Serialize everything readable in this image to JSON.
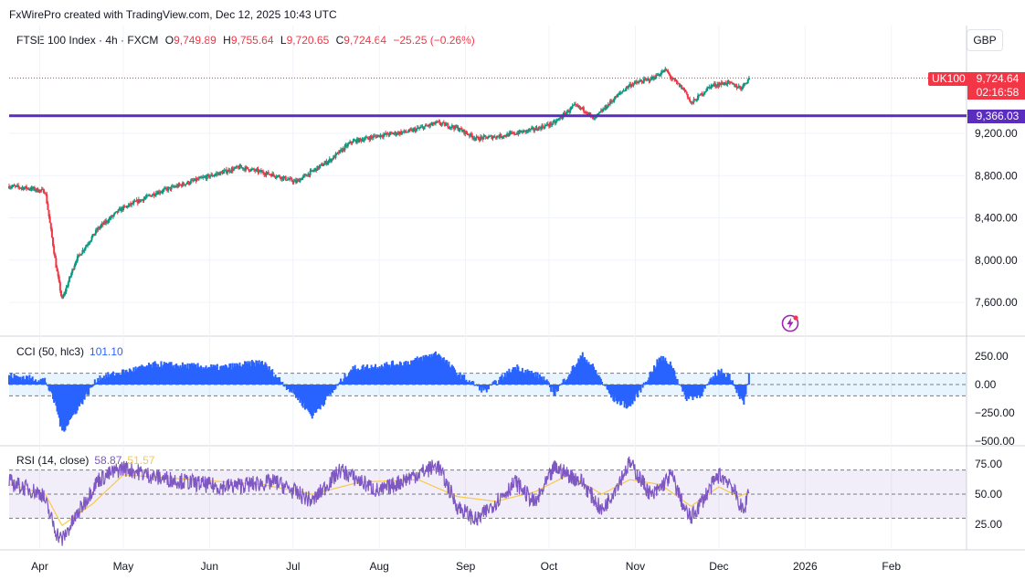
{
  "header": {
    "attribution": "FxWirePro created with TradingView.com, Dec 12, 2025 10:43 UTC"
  },
  "symbol": {
    "name": "FTSE 100 Index · 4h · FXCM",
    "open_label": "O",
    "open": "9,749.89",
    "high_label": "H",
    "high": "9,755.64",
    "low_label": "L",
    "low": "9,720.65",
    "close_label": "C",
    "close": "9,724.64",
    "change": "−25.25 (−0.26%)"
  },
  "currency": "GBP",
  "badges": {
    "ticker": "UK100",
    "last_price": "9,724.64",
    "countdown": "02:16:58",
    "horizontal_line": "9,366.03"
  },
  "cci": {
    "label": "CCI (50, hlc3)",
    "value": "101.10"
  },
  "rsi": {
    "label": "RSI (14, close)",
    "value": "58.87",
    "ma_value": "51.57"
  },
  "colors": {
    "up": "#089981",
    "down": "#f23645",
    "line": "#5b2dbf",
    "cci": "#2962ff",
    "rsi": "#7e57c2",
    "rsi_ma": "#f7c948"
  },
  "icons": {
    "flash": "flash-icon"
  },
  "chart_data": [
    {
      "type": "candlestick",
      "title": "FTSE 100 Index · 4h · FXCM",
      "y_ticks": [
        "7,600.00",
        "8,000.00",
        "8,400.00",
        "8,800.00",
        "9,200.00"
      ],
      "y_tick_values": [
        7600,
        8000,
        8400,
        8800,
        9200
      ],
      "x_ticks": [
        "Apr",
        "May",
        "Jun",
        "Jul",
        "Aug",
        "Sep",
        "Oct",
        "Nov",
        "Dec",
        "2026",
        "Feb"
      ],
      "horizontal_line": 9366.03,
      "last_price": 9724.64,
      "path_dates": [
        "Mar 21",
        "Mar 28",
        "Apr 3",
        "Apr 7",
        "Apr 9",
        "Apr 14",
        "Apr 22",
        "Apr 30",
        "May 13",
        "May 30",
        "Jun 12",
        "Jun 25",
        "Jul 2",
        "Jul 15",
        "Jul 22",
        "Aug 1",
        "Aug 12",
        "Aug 22",
        "Aug 29",
        "Sep 5",
        "Sep 15",
        "Sep 26",
        "Oct 3",
        "Oct 10",
        "Oct 14",
        "Oct 17",
        "Oct 24",
        "Oct 30",
        "Nov 7",
        "Nov 12",
        "Nov 14",
        "Nov 19",
        "Nov 21",
        "Nov 28",
        "Dec 4",
        "Dec 9",
        "Dec 12"
      ],
      "path_values": [
        8700,
        8680,
        8650,
        7920,
        7620,
        8000,
        8300,
        8480,
        8640,
        8780,
        8880,
        8800,
        8740,
        8960,
        9120,
        9180,
        9220,
        9300,
        9250,
        9150,
        9180,
        9240,
        9300,
        9460,
        9420,
        9330,
        9520,
        9660,
        9720,
        9800,
        9720,
        9600,
        9480,
        9650,
        9680,
        9630,
        9724.64
      ]
    },
    {
      "type": "area",
      "title": "CCI (50, hlc3)",
      "y_ticks": [
        "250.00",
        "0.00",
        "−250.00",
        "−500.00"
      ],
      "y_tick_values": [
        250,
        0,
        -250,
        -500
      ],
      "bands": [
        100,
        -100
      ],
      "path_dates": [
        "Mar 21",
        "Apr 3",
        "Apr 7",
        "Apr 9",
        "Apr 22",
        "May 13",
        "Jun 5",
        "Jun 20",
        "Jul 2",
        "Jul 8",
        "Jul 22",
        "Aug 12",
        "Aug 22",
        "Aug 29",
        "Sep 8",
        "Sep 19",
        "Sep 29",
        "Oct 3",
        "Oct 13",
        "Oct 17",
        "Oct 24",
        "Oct 30",
        "Nov 10",
        "Nov 14",
        "Nov 19",
        "Nov 24",
        "Dec 1",
        "Dec 5",
        "Dec 10",
        "Dec 12"
      ],
      "path_values": [
        80,
        40,
        -200,
        -420,
        60,
        180,
        150,
        200,
        -100,
        -280,
        140,
        200,
        280,
        100,
        -60,
        160,
        60,
        -80,
        260,
        150,
        -130,
        -200,
        240,
        180,
        -120,
        -100,
        120,
        80,
        -180,
        101.1
      ]
    },
    {
      "type": "line",
      "title": "RSI (14, close)",
      "y_ticks": [
        "75.00",
        "50.00",
        "25.00"
      ],
      "y_tick_values": [
        75,
        50,
        25
      ],
      "bands": [
        70,
        30
      ],
      "series": [
        {
          "name": "RSI",
          "path_dates": [
            "Mar 21",
            "Apr 2",
            "Apr 7",
            "Apr 9",
            "Apr 22",
            "May 1",
            "May 13",
            "Jun 5",
            "Jun 25",
            "Jul 8",
            "Jul 18",
            "Aug 1",
            "Aug 12",
            "Aug 22",
            "Aug 29",
            "Sep 5",
            "Sep 19",
            "Sep 26",
            "Oct 3",
            "Oct 13",
            "Oct 20",
            "Oct 30",
            "Nov 7",
            "Nov 14",
            "Nov 19",
            "Nov 21",
            "Dec 1",
            "Dec 5",
            "Dec 10",
            "Dec 12"
          ],
          "path_values": [
            60,
            50,
            18,
            12,
            62,
            72,
            64,
            56,
            60,
            44,
            70,
            52,
            64,
            74,
            40,
            28,
            60,
            42,
            72,
            60,
            36,
            76,
            48,
            66,
            36,
            30,
            66,
            60,
            34,
            58.87
          ]
        },
        {
          "name": "RSI-based MA",
          "path_dates": [
            "Mar 21",
            "Apr 3",
            "Apr 9",
            "Apr 20",
            "May 1",
            "May 20",
            "Jun 20",
            "Jul 8",
            "Jul 25",
            "Aug 15",
            "Aug 29",
            "Sep 12",
            "Sep 26",
            "Oct 8",
            "Oct 20",
            "Oct 30",
            "Nov 10",
            "Nov 21",
            "Dec 1",
            "Dec 8",
            "Dec 12"
          ],
          "path_values": [
            58,
            50,
            24,
            42,
            66,
            63,
            58,
            50,
            60,
            62,
            48,
            44,
            52,
            66,
            50,
            62,
            58,
            40,
            56,
            48,
            51.57
          ]
        }
      ]
    }
  ]
}
